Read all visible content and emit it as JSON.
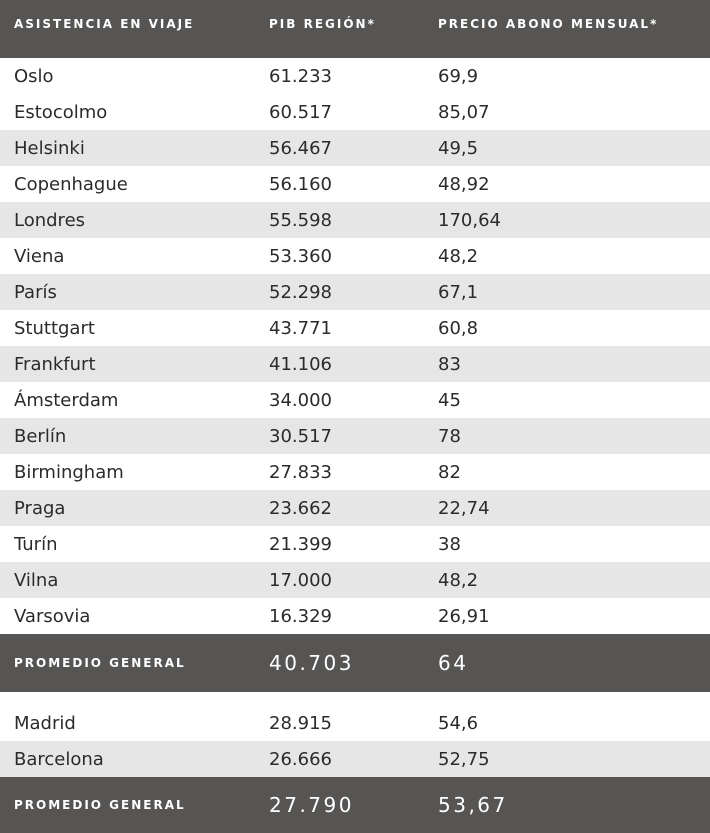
{
  "header": [
    "ASISTENCIA EN VIAJE",
    "PIB REGIÓN*",
    "PRECIO ABONO MENSUAL*"
  ],
  "groups": [
    {
      "rows": [
        [
          "Oslo",
          "61.233",
          "69,9"
        ],
        [
          "Estocolmo",
          "60.517",
          "85,07"
        ],
        [
          "Helsinki",
          "56.467",
          "49,5"
        ],
        [
          "Copenhague",
          "56.160",
          "48,92"
        ],
        [
          "Londres",
          "55.598",
          "170,64"
        ],
        [
          "Viena",
          "53.360",
          "48,2"
        ],
        [
          "París",
          "52.298",
          "67,1"
        ],
        [
          "Stuttgart",
          "43.771",
          "60,8"
        ],
        [
          "Frankfurt",
          "41.106",
          "83"
        ],
        [
          "Ámsterdam",
          "34.000",
          "45"
        ],
        [
          "Berlín",
          "30.517",
          "78"
        ],
        [
          "Birmingham",
          "27.833",
          "82"
        ],
        [
          "Praga",
          "23.662",
          "22,74"
        ],
        [
          "Turín",
          "21.399",
          "38"
        ],
        [
          "Vilna",
          "17.000",
          "48,2"
        ],
        [
          "Varsovia",
          "16.329",
          "26,91"
        ]
      ],
      "average": [
        "PROMEDIO GENERAL",
        "40.703",
        "64"
      ]
    },
    {
      "rows": [
        [
          "Madrid",
          "28.915",
          "54,6"
        ],
        [
          "Barcelona",
          "26.666",
          "52,75"
        ]
      ],
      "average": [
        "PROMEDIO GENERAL",
        "27.790",
        "53,67"
      ]
    }
  ]
}
